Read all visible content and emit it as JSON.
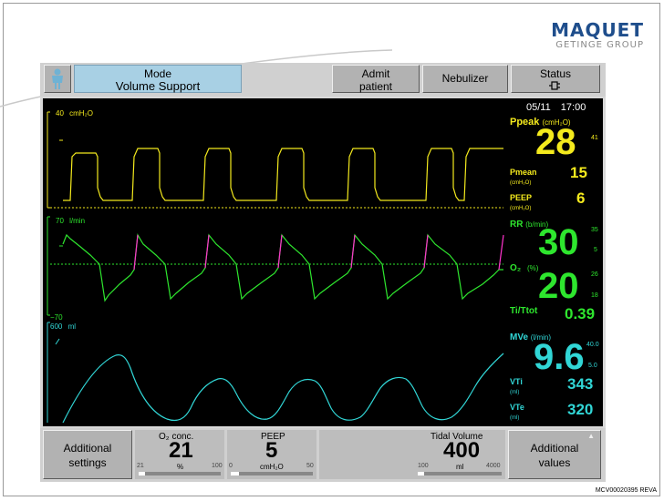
{
  "brand": {
    "name": "MAQUET",
    "group": "GETINGE GROUP"
  },
  "topbar": {
    "mode_title": "Mode",
    "mode_value": "Volume Support",
    "admit_line1": "Admit",
    "admit_line2": "patient",
    "nebulizer": "Nebulizer",
    "status_title": "Status",
    "status_icon": "battery-plug-icon"
  },
  "datetime": {
    "date": "05/11",
    "time": "17:00"
  },
  "waves": {
    "pressure": {
      "scale": "40",
      "unit": "cmH₂O"
    },
    "flow": {
      "scale": "70",
      "unit": "l/min",
      "min": "−70"
    },
    "volume": {
      "scale": "600",
      "unit": "ml"
    }
  },
  "values": {
    "ppeak": {
      "label": "Ppeak",
      "unit": "(cmH₂O)",
      "value": "28",
      "upper": "41"
    },
    "pmean": {
      "label": "Pmean",
      "unit": "(cmH₂O)",
      "value": "15"
    },
    "peep": {
      "label": "PEEP",
      "unit": "(cmH₂O)",
      "value": "6"
    },
    "rr": {
      "label": "RR",
      "unit": "(b/min)",
      "value": "30",
      "upper": "35",
      "lower": "5"
    },
    "o2": {
      "label": "O₂",
      "unit": "(%)",
      "value": "20",
      "upper": "26",
      "lower": "18"
    },
    "titot": {
      "label": "Ti/Ttot",
      "value": "0.39"
    },
    "mve": {
      "label": "MVe",
      "unit": "(l/min)",
      "value": "9.6",
      "upper": "40.0",
      "lower": "5.0"
    },
    "vti": {
      "label": "VTi",
      "unit": "(ml)",
      "value": "343"
    },
    "vte": {
      "label": "VTe",
      "unit": "(ml)",
      "value": "320"
    }
  },
  "bottombar": {
    "additional_settings_l1": "Additional",
    "additional_settings_l2": "settings",
    "o2conc": {
      "name": "O₂ conc.",
      "value": "21",
      "unit": "%",
      "min": "21",
      "max": "100",
      "level": 0.0
    },
    "peep": {
      "name": "PEEP",
      "value": "5",
      "unit": "cmH₂O",
      "min": "0",
      "max": "50",
      "level": 0.1
    },
    "tidal": {
      "name": "Tidal Volume",
      "value": "400",
      "unit": "ml",
      "min": "100",
      "max": "4000",
      "level": 0.08
    },
    "additional_values_l1": "Additional",
    "additional_values_l2": "values"
  },
  "reference": "MCV00020395 REVA",
  "colors": {
    "pressure": "#f4ea1d",
    "flow": "#2ee62e",
    "flow_insp": "#ff33cc",
    "volume": "#31d6d6",
    "mode_button": "#a8d0e4"
  }
}
